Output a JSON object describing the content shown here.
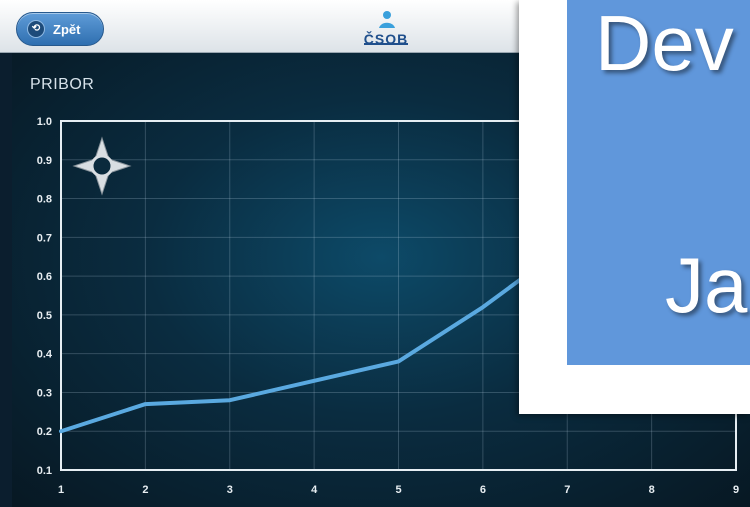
{
  "header": {
    "back_label": "Zpět",
    "logo_text": "ČSOB"
  },
  "colors": {
    "line": "#5aa9e0",
    "panel": "#0a2c40",
    "slide": "#6097db"
  },
  "icons": {
    "back": "back-arrow-icon",
    "pan": "pan-cross-icon",
    "logo": "csob-logo-icon"
  },
  "chart_data": {
    "type": "line",
    "title": "PRIBOR",
    "x": [
      1,
      2,
      3,
      4,
      5,
      6,
      6.5
    ],
    "values": [
      0.2,
      0.27,
      0.28,
      0.33,
      0.38,
      0.52,
      0.6
    ],
    "xticks": [
      "1",
      "2",
      "3",
      "4",
      "5",
      "6",
      "7",
      "8",
      "9"
    ],
    "yticks": [
      "1.0",
      "0.9",
      "0.8",
      "0.7",
      "0.6",
      "0.5",
      "0.4",
      "0.3",
      "0.2",
      "0.1"
    ],
    "xlim": [
      1,
      9
    ],
    "ylim": [
      0.1,
      1.0
    ],
    "grid": true
  },
  "overlay": {
    "line1": "Dev",
    "line2": "Ja"
  }
}
